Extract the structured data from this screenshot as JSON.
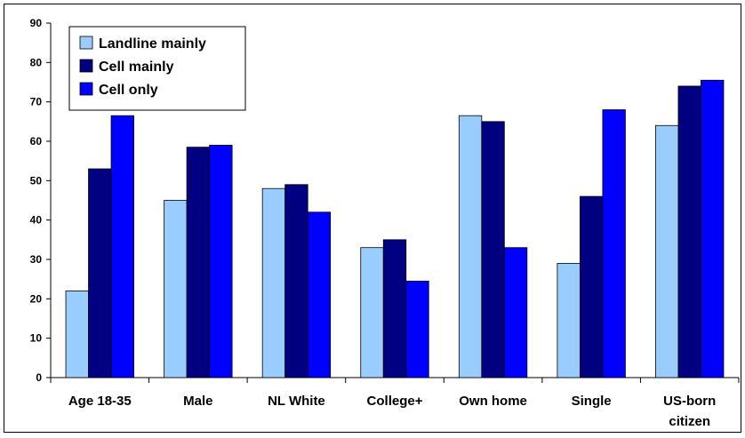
{
  "chart_data": {
    "type": "bar",
    "title": "",
    "xlabel": "",
    "ylabel": "",
    "ylim": [
      0,
      90
    ],
    "yticks": [
      0,
      10,
      20,
      30,
      40,
      50,
      60,
      70,
      80,
      90
    ],
    "grid": false,
    "legend_position": "top-left",
    "categories": [
      [
        "Age 18-35"
      ],
      [
        "Male"
      ],
      [
        "NL White"
      ],
      [
        "College+"
      ],
      [
        "Own home"
      ],
      [
        "Single"
      ],
      [
        "US-born",
        "citizen"
      ]
    ],
    "series": [
      {
        "name": "Landline mainly",
        "color": "#99ccff",
        "values": [
          22,
          45,
          48,
          33,
          66.5,
          29,
          64
        ]
      },
      {
        "name": "Cell mainly",
        "color": "#000080",
        "values": [
          53,
          58.5,
          49,
          35,
          65,
          46,
          74
        ]
      },
      {
        "name": "Cell only",
        "color": "#0000ff",
        "values": [
          66.5,
          59,
          42,
          24.5,
          33,
          68,
          75.5
        ]
      }
    ]
  }
}
